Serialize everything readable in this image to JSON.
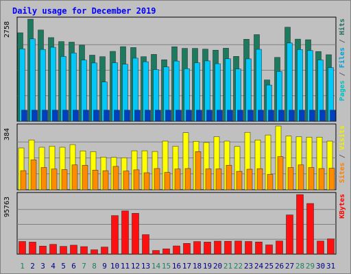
{
  "chart_data": {
    "type": "bar",
    "title": "Daily usage for December 2019",
    "categories": [
      "1",
      "2",
      "3",
      "4",
      "5",
      "6",
      "7",
      "8",
      "9",
      "10",
      "11",
      "12",
      "13",
      "14",
      "15",
      "16",
      "17",
      "18",
      "19",
      "20",
      "21",
      "22",
      "23",
      "24",
      "25",
      "26",
      "27",
      "28",
      "29",
      "30",
      "31"
    ],
    "weekend_days": [
      "1",
      "7",
      "8",
      "14",
      "15",
      "21",
      "22",
      "28",
      "29"
    ],
    "panels": [
      {
        "id": "hits",
        "max_label": "2758",
        "ymax": 2758,
        "legend": [
          {
            "text": "Pages",
            "color": "#00c0c0"
          },
          {
            "text": " / ",
            "color": "#606060"
          },
          {
            "text": "Files",
            "color": "#00a0d8"
          },
          {
            "text": " / ",
            "color": "#606060"
          },
          {
            "text": "Hits",
            "color": "#207060"
          }
        ],
        "series": [
          {
            "name": "Hits",
            "color": "#1e7a5e",
            "values": [
              2390,
              2758,
              2466,
              2261,
              2153,
              2138,
              2057,
              1787,
              1745,
              1888,
              2016,
              1992,
              1745,
              1807,
              1663,
              2014,
              1969,
              1969,
              1949,
              1922,
              1974,
              1753,
              2215,
              2342,
              1116,
              1725,
              2542,
              2220,
              2202,
              1885,
              1798
            ]
          },
          {
            "name": "Files",
            "color": "#00c8f8",
            "values": [
              1957,
              2225,
              1942,
              1999,
              1751,
              1843,
              1653,
              1575,
              1060,
              1580,
              1541,
              1704,
              1608,
              1398,
              1470,
              1627,
              1422,
              1580,
              1630,
              1554,
              1688,
              1412,
              1687,
              1944,
              979,
              1344,
              2114,
              1936,
              1911,
              1656,
              1449
            ]
          },
          {
            "name": "Pages",
            "color": "#0040c0",
            "values": [
              300,
              300,
              300,
              300,
              300,
              300,
              300,
              300,
              300,
              300,
              300,
              300,
              300,
              300,
              300,
              300,
              300,
              300,
              300,
              300,
              300,
              300,
              300,
              300,
              300,
              300,
              300,
              300,
              300,
              300,
              300
            ]
          }
        ]
      },
      {
        "id": "visits",
        "max_label": "384",
        "ymax": 384,
        "legend": [
          {
            "text": "Sites",
            "color": "#ff8000"
          },
          {
            "text": " / ",
            "color": "#606060"
          },
          {
            "text": "Visits",
            "color": "#f0f000"
          }
        ],
        "series": [
          {
            "name": "Visits",
            "color": "#ffff00",
            "values": [
              252,
              300,
              256,
              263,
              256,
              272,
              234,
              230,
              197,
              195,
              193,
              235,
              235,
              231,
              293,
              262,
              344,
              292,
              285,
              320,
              293,
              261,
              346,
              300,
              330,
              384,
              324,
              320,
              317,
              317,
              293
            ]
          },
          {
            "name": "Sites",
            "color": "#ff8c00",
            "values": [
              115,
              180,
              134,
              125,
              122,
              150,
              148,
              118,
              115,
              141,
              113,
              120,
              103,
              128,
              105,
              125,
              128,
              230,
              126,
              126,
              148,
              111,
              124,
              127,
              93,
              200,
              134,
              150,
              134,
              128,
              130
            ]
          }
        ]
      },
      {
        "id": "kbytes",
        "max_label": "95763",
        "ymax": 95763,
        "legend": [
          {
            "text": "KBytes",
            "color": "#ff0000"
          }
        ],
        "series": [
          {
            "name": "KBytes",
            "color": "#ff1010",
            "values": [
              20400,
              19400,
              13000,
              15700,
              12500,
              14400,
              12100,
              7000,
              11400,
              62000,
              69500,
              65600,
              31400,
              5900,
              8600,
              13200,
              17300,
              20300,
              19400,
              20900,
              20700,
              21000,
              20400,
              19600,
              14900,
              21100,
              63100,
              95763,
              81500,
              21000,
              24500
            ]
          }
        ]
      }
    ]
  }
}
